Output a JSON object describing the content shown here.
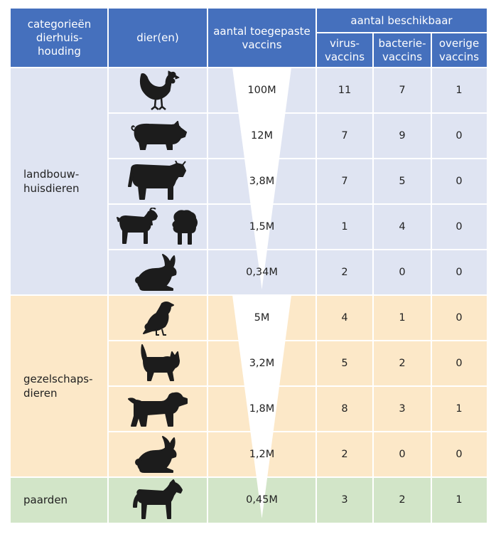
{
  "colors": {
    "header": "#4570bd",
    "landbouw": "#dfe4f2",
    "gezelschap": "#fce8c8",
    "paarden": "#d2e5c8",
    "silhouette": "#1c1c1c",
    "triangle": "#ffffff"
  },
  "header": {
    "category": "categorieën dierhuis-houding",
    "category_lines": [
      "categorieën",
      "dierhuis-",
      "houding"
    ],
    "animals": "dier(en)",
    "applied": "aantal toegepaste vaccins",
    "applied_lines": [
      "aantal toegepaste",
      "vaccins"
    ],
    "available": "aantal beschikbaar",
    "virus": "virus-vaccins",
    "virus_lines": [
      "virus-",
      "vaccins"
    ],
    "bacteria": "bacterie-vaccins",
    "bacteria_lines": [
      "bacterie-",
      "vaccins"
    ],
    "other": "overige vaccins",
    "other_lines": [
      "overige",
      "vaccins"
    ]
  },
  "categories": [
    {
      "id": "landbouw",
      "label_lines": [
        "landbouw-",
        "huisdieren"
      ]
    },
    {
      "id": "gezelschap",
      "label_lines": [
        "gezelschaps-",
        "dieren"
      ]
    },
    {
      "id": "paarden",
      "label_lines": [
        "paarden"
      ]
    }
  ],
  "rows": [
    {
      "category": "landbouw",
      "animals": [
        "chicken-icon"
      ],
      "applied": "100M",
      "virus": "11",
      "bacteria": "7",
      "other": "1"
    },
    {
      "category": "landbouw",
      "animals": [
        "pig-icon"
      ],
      "applied": "12M",
      "virus": "7",
      "bacteria": "9",
      "other": "0"
    },
    {
      "category": "landbouw",
      "animals": [
        "cow-icon"
      ],
      "applied": "3,8M",
      "virus": "7",
      "bacteria": "5",
      "other": "0"
    },
    {
      "category": "landbouw",
      "animals": [
        "goat-icon",
        "sheep-icon"
      ],
      "applied": "1,5M",
      "virus": "1",
      "bacteria": "4",
      "other": "0"
    },
    {
      "category": "landbouw",
      "animals": [
        "rabbit-icon"
      ],
      "applied": "0,34M",
      "virus": "2",
      "bacteria": "0",
      "other": "0"
    },
    {
      "category": "gezelschap",
      "animals": [
        "bird-icon"
      ],
      "applied": "5M",
      "virus": "4",
      "bacteria": "1",
      "other": "0"
    },
    {
      "category": "gezelschap",
      "animals": [
        "cat-icon"
      ],
      "applied": "3,2M",
      "virus": "5",
      "bacteria": "2",
      "other": "0"
    },
    {
      "category": "gezelschap",
      "animals": [
        "dog-icon"
      ],
      "applied": "1,8M",
      "virus": "8",
      "bacteria": "3",
      "other": "1"
    },
    {
      "category": "gezelschap",
      "animals": [
        "rabbit-icon"
      ],
      "applied": "1,2M",
      "virus": "2",
      "bacteria": "0",
      "other": "0"
    },
    {
      "category": "paarden",
      "animals": [
        "horse-icon"
      ],
      "applied": "0,45M",
      "virus": "3",
      "bacteria": "2",
      "other": "1"
    }
  ]
}
